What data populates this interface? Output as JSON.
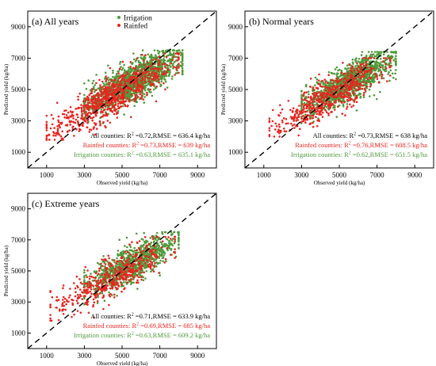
{
  "colors": {
    "irrigation": "#4e9a3a",
    "rainfed": "#e8251f",
    "all": "#000000",
    "axis": "#000000",
    "oneToOne": "#000000"
  },
  "chart_data": [
    {
      "type": "scatter",
      "title": "(a) All years",
      "xlabel": "Observed yield (kg/ha)",
      "ylabel": "Predicted yield (kg/ha)",
      "xlim": [
        0,
        10000
      ],
      "ylim": [
        0,
        10000
      ],
      "xticks": [
        "1000",
        "3000",
        "5000",
        "7000",
        "9000"
      ],
      "yticks": [
        "1000",
        "3000",
        "5000",
        "7000",
        "9000"
      ],
      "one_to_one_line": true,
      "legend": {
        "placement": "top-center",
        "entries": [
          {
            "label": "Irrigation",
            "series": "irrigation"
          },
          {
            "label": "Rainfed",
            "series": "rainfed"
          }
        ]
      },
      "series": [
        {
          "name": "Irrigation",
          "key": "irrigation",
          "count": 1500,
          "x_range": [
            3000,
            8200
          ],
          "y_range": [
            2500,
            7500
          ]
        },
        {
          "name": "Rainfed",
          "key": "rainfed",
          "count": 800,
          "x_range": [
            1000,
            8000
          ],
          "y_range": [
            1800,
            7300
          ]
        }
      ],
      "stats": [
        {
          "key": "all",
          "prefix": "All counties: R",
          "sup": "2",
          "suffix": " =0.72,RMSE = 636.4 kg/ha"
        },
        {
          "key": "rainfed",
          "prefix": "Rainfed counties: R",
          "sup": "2",
          "suffix": " =0.73,RMSE = 639 kg/ha"
        },
        {
          "key": "irrigation",
          "prefix": "Irrigation counties: R",
          "sup": "2",
          "suffix": " =0.63,RMSE = 635.1 kg/ha"
        }
      ]
    },
    {
      "type": "scatter",
      "title": "(b) Normal years",
      "xlabel": "Observed yield (kg/ha)",
      "ylabel": "Predicted yield (kg/ha)",
      "xlim": [
        0,
        10000
      ],
      "ylim": [
        0,
        10000
      ],
      "xticks": [
        "1000",
        "3000",
        "5000",
        "7000",
        "9000"
      ],
      "yticks": [
        "1000",
        "3000",
        "5000",
        "7000",
        "9000"
      ],
      "one_to_one_line": true,
      "series": [
        {
          "name": "Irrigation",
          "key": "irrigation",
          "count": 1200,
          "x_range": [
            3000,
            8000
          ],
          "y_range": [
            2800,
            7400
          ]
        },
        {
          "name": "Rainfed",
          "key": "rainfed",
          "count": 600,
          "x_range": [
            1300,
            7700
          ],
          "y_range": [
            2000,
            7000
          ]
        }
      ],
      "stats": [
        {
          "key": "all",
          "prefix": "All counties: R",
          "sup": "2",
          "suffix": " =0.73,RMSE = 638 kg/ha"
        },
        {
          "key": "rainfed",
          "prefix": "Rainfed counties: R",
          "sup": "2",
          "suffix": " =0.76,RMSE = 608.5 kg/ha"
        },
        {
          "key": "irrigation",
          "prefix": "Irrigation counties: R",
          "sup": "2",
          "suffix": " =0.62,RMSE = 651.5 kg/ha"
        }
      ]
    },
    {
      "type": "scatter",
      "title": "(c) Extreme years",
      "xlabel": "Observed yield (kg/ha)",
      "ylabel": "Predicted yield (kg/ha)",
      "xlim": [
        0,
        10000
      ],
      "ylim": [
        0,
        10000
      ],
      "xticks": [
        "1000",
        "3000",
        "5000",
        "7000",
        "9000"
      ],
      "yticks": [
        "1000",
        "3000",
        "5000",
        "7000",
        "9000"
      ],
      "one_to_one_line": true,
      "series": [
        {
          "name": "Irrigation",
          "key": "irrigation",
          "count": 900,
          "x_range": [
            3000,
            8000
          ],
          "y_range": [
            2800,
            7500
          ]
        },
        {
          "name": "Rainfed",
          "key": "rainfed",
          "count": 500,
          "x_range": [
            1200,
            7800
          ],
          "y_range": [
            1800,
            7200
          ]
        }
      ],
      "stats": [
        {
          "key": "all",
          "prefix": "All counties: R",
          "sup": "2",
          "suffix": " =0.71,RMSE = 633.9 kg/ha"
        },
        {
          "key": "rainfed",
          "prefix": "Rainfed counties: R",
          "sup": "2",
          "suffix": " =0.69,RMSE = 685 kg/ha"
        },
        {
          "key": "irrigation",
          "prefix": "Irrigation counties: R",
          "sup": "2",
          "suffix": " =0.63,RMSE = 609.2 kg/ha"
        }
      ]
    }
  ]
}
